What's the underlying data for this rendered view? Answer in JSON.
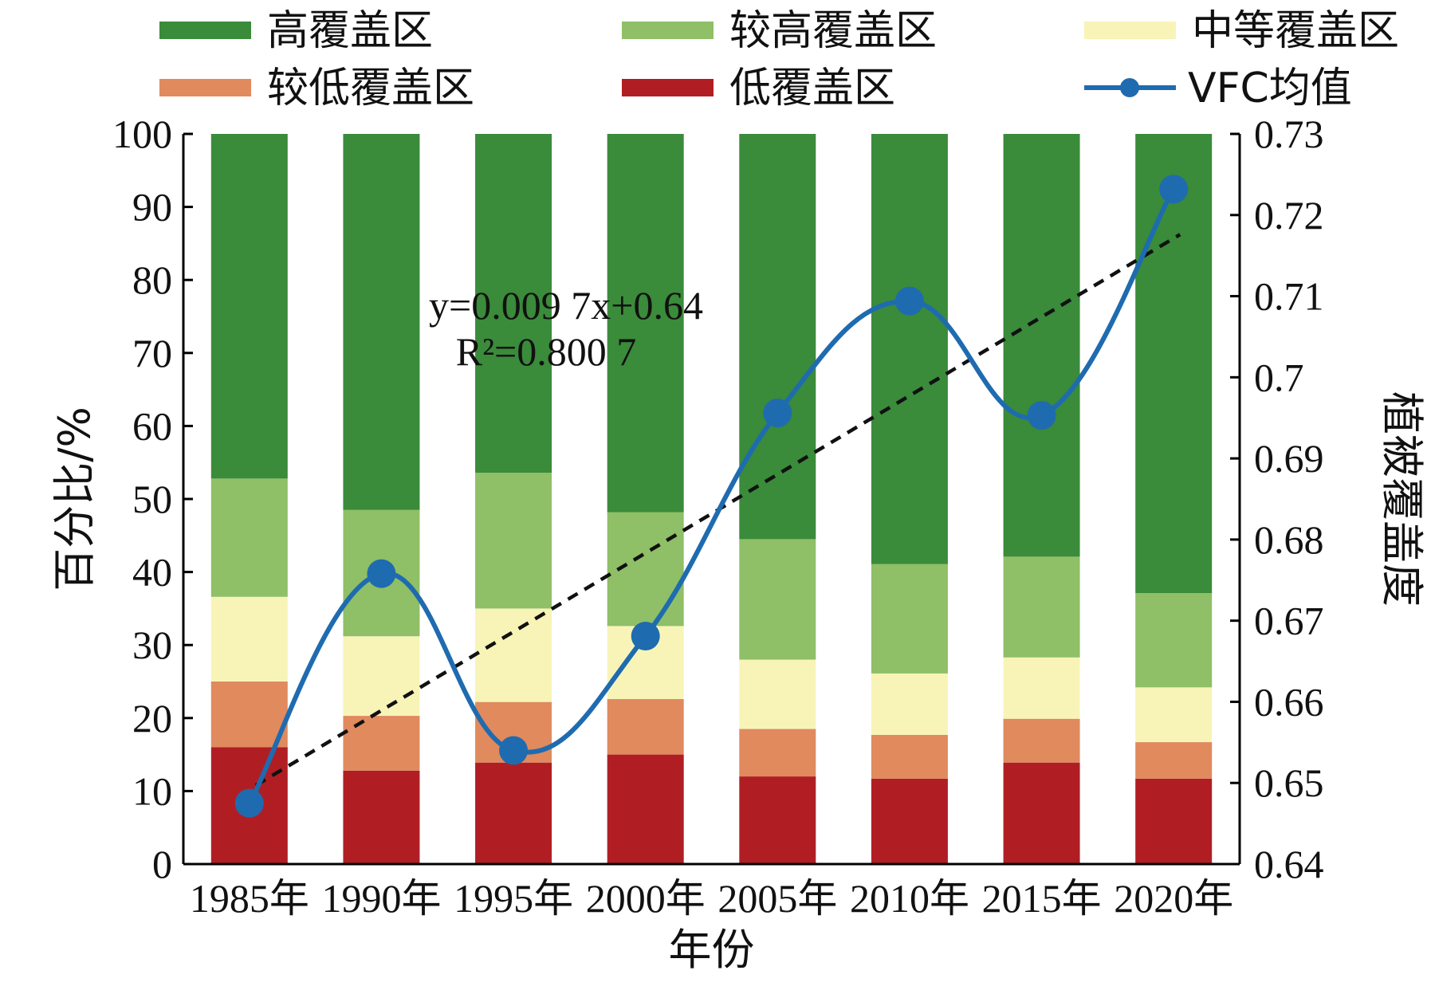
{
  "chart_data": {
    "type": "bar",
    "stacked": true,
    "categories": [
      "1985年",
      "1990年",
      "1995年",
      "2000年",
      "2005年",
      "2010年",
      "2015年",
      "2020年"
    ],
    "series": [
      {
        "name": "低覆盖区",
        "color": "#b01e24",
        "values": [
          16.0,
          12.8,
          13.9,
          15.0,
          12.0,
          11.7,
          13.9,
          11.7
        ]
      },
      {
        "name": "较低覆盖区",
        "color": "#e08a5e",
        "values": [
          9.0,
          7.5,
          8.3,
          7.6,
          6.5,
          6.0,
          6.0,
          5.0
        ]
      },
      {
        "name": "中等覆盖区",
        "color": "#f8f4b8",
        "values": [
          11.6,
          10.9,
          12.8,
          10.0,
          9.5,
          8.4,
          8.4,
          7.5
        ]
      },
      {
        "name": "较高覆盖区",
        "color": "#8fbf66",
        "values": [
          16.2,
          17.3,
          18.6,
          15.6,
          16.5,
          15.0,
          13.8,
          12.9
        ]
      },
      {
        "name": "高覆盖区",
        "color": "#3a8b3a",
        "values": [
          47.2,
          51.5,
          46.4,
          51.8,
          55.5,
          58.9,
          57.9,
          62.9
        ]
      }
    ],
    "line_series": {
      "name": "VFC均值",
      "color": "#1f6bb0",
      "axis": "right",
      "values": [
        0.6475,
        0.6758,
        0.654,
        0.6681,
        0.6956,
        0.7094,
        0.6953,
        0.7232
      ]
    },
    "trendline": {
      "equation": "y=0.009 7x+0.64",
      "r_squared": "R²=0.800 7",
      "slope": 0.0097,
      "intercept": 0.64,
      "color": "#111111"
    },
    "legend": {
      "order": [
        "高覆盖区",
        "较高覆盖区",
        "中等覆盖区",
        "较低覆盖区",
        "低覆盖区",
        "VFC均值"
      ],
      "placement": "top"
    },
    "xlabel": "年份",
    "ylabel": "百分比/%",
    "y2label": "植被覆盖度",
    "ylim": [
      0,
      100
    ],
    "y_ticks": [
      0,
      10,
      20,
      30,
      40,
      50,
      60,
      70,
      80,
      90,
      100
    ],
    "y2lim": [
      0.64,
      0.73
    ],
    "y2_ticks": [
      "0.64",
      "0.65",
      "0.66",
      "0.67",
      "0.68",
      "0.69",
      "0.7",
      "0.71",
      "0.72",
      "0.73"
    ],
    "grid": false
  }
}
